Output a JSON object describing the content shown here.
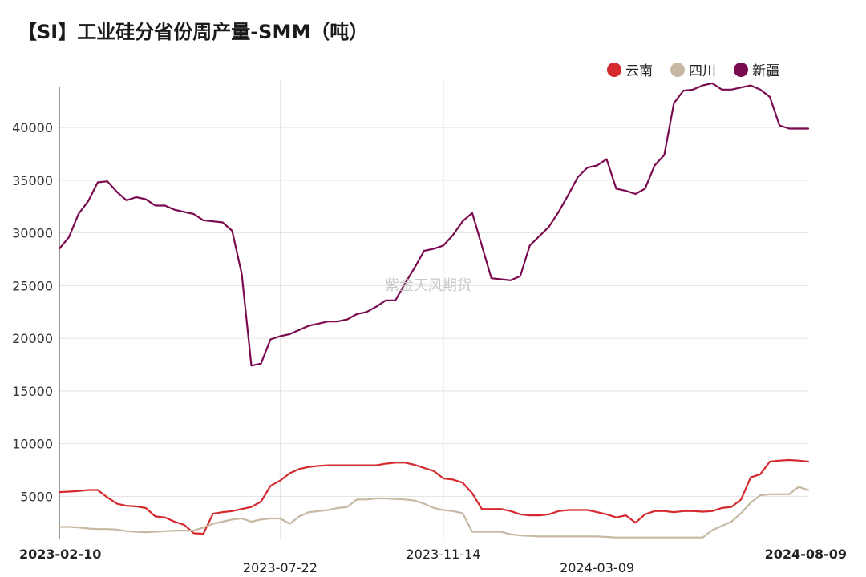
{
  "chart_data": {
    "type": "line",
    "title": "【SI】工业硅分省份周产量-SMM（吨）",
    "watermark": "紫金天风期货",
    "x": [
      "2023-02-10",
      "2023-02-17",
      "2023-02-24",
      "2023-03-03",
      "2023-03-10",
      "2023-03-17",
      "2023-03-24",
      "2023-03-31",
      "2023-04-07",
      "2023-04-14",
      "2023-04-21",
      "2023-04-28",
      "2023-05-05",
      "2023-05-12",
      "2023-05-19",
      "2023-05-26",
      "2023-06-02",
      "2023-06-09",
      "2023-06-16",
      "2023-06-23",
      "2023-06-30",
      "2023-07-07",
      "2023-07-14",
      "2023-07-21",
      "2023-07-28",
      "2023-08-04",
      "2023-08-11",
      "2023-08-18",
      "2023-08-25",
      "2023-09-01",
      "2023-09-08",
      "2023-09-15",
      "2023-09-22",
      "2023-09-29",
      "2023-10-06",
      "2023-10-13",
      "2023-10-20",
      "2023-10-27",
      "2023-11-03",
      "2023-11-10",
      "2023-11-17",
      "2023-11-24",
      "2023-12-01",
      "2023-12-08",
      "2023-12-15",
      "2023-12-22",
      "2023-12-29",
      "2024-01-05",
      "2024-01-12",
      "2024-01-19",
      "2024-01-26",
      "2024-02-02",
      "2024-02-09",
      "2024-02-16",
      "2024-02-23",
      "2024-03-01",
      "2024-03-08",
      "2024-03-15",
      "2024-03-22",
      "2024-03-29",
      "2024-04-05",
      "2024-04-12",
      "2024-04-19",
      "2024-04-26",
      "2024-05-03",
      "2024-05-10",
      "2024-05-17",
      "2024-05-24",
      "2024-05-31",
      "2024-06-07",
      "2024-06-14",
      "2024-06-21",
      "2024-06-28",
      "2024-07-05",
      "2024-07-12",
      "2024-07-19",
      "2024-07-26",
      "2024-08-02",
      "2024-08-09"
    ],
    "xticks": [
      "2023-02-10",
      "2023-07-22",
      "2023-11-14",
      "2024-03-09",
      "2024-08-09"
    ],
    "yticks": [
      5000,
      10000,
      15000,
      20000,
      25000,
      30000,
      35000,
      40000
    ],
    "ylim": [
      1000,
      44500
    ],
    "grid": true,
    "legend_position": "top-right",
    "series": [
      {
        "name": "云南",
        "color": "#d42a2f",
        "values": [
          5400,
          5450,
          5500,
          5600,
          5600,
          4900,
          4300,
          4100,
          4050,
          3900,
          3100,
          3000,
          2600,
          2300,
          1500,
          1450,
          3350,
          3500,
          3600,
          3800,
          4000,
          4500,
          6000,
          6500,
          7200,
          7600,
          7800,
          7900,
          7950,
          7950,
          7950,
          7950,
          7950,
          7950,
          8100,
          8200,
          8200,
          8000,
          7700,
          7400,
          6700,
          6600,
          6300,
          5300,
          3800,
          3800,
          3800,
          3600,
          3300,
          3200,
          3200,
          3300,
          3600,
          3700,
          3700,
          3700,
          3500,
          3300,
          3000,
          3200,
          2500,
          3300,
          3600,
          3600,
          3500,
          3600,
          3600,
          3550,
          3600,
          3900,
          4000,
          4700,
          6800,
          7100,
          8300,
          8400,
          8450,
          8400,
          8300
        ]
      },
      {
        "name": "四川",
        "color": "#c6b8a3",
        "values": [
          2100,
          2100,
          2050,
          1950,
          1900,
          1900,
          1850,
          1700,
          1650,
          1600,
          1650,
          1700,
          1750,
          1750,
          1750,
          2050,
          2400,
          2600,
          2800,
          2900,
          2600,
          2800,
          2900,
          2900,
          2400,
          3100,
          3500,
          3600,
          3700,
          3900,
          4000,
          4700,
          4700,
          4800,
          4800,
          4750,
          4700,
          4600,
          4300,
          3900,
          3700,
          3600,
          3400,
          1650,
          1650,
          1650,
          1650,
          1400,
          1300,
          1250,
          1200,
          1200,
          1200,
          1200,
          1200,
          1200,
          1200,
          1150,
          1100,
          1100,
          1100,
          1100,
          1100,
          1100,
          1100,
          1100,
          1100,
          1100,
          1800,
          2200,
          2600,
          3400,
          4400,
          5100,
          5200,
          5200,
          5200,
          5900,
          5600
        ]
      },
      {
        "name": "新疆",
        "color": "#7a0b4f",
        "values": [
          28500,
          29600,
          31800,
          33000,
          34800,
          34900,
          33900,
          33100,
          33400,
          33200,
          32600,
          32600,
          32200,
          32000,
          31800,
          31200,
          31100,
          31000,
          30200,
          26100,
          17400,
          17600,
          19900,
          20200,
          20400,
          20800,
          21200,
          21400,
          21600,
          21600,
          21800,
          22300,
          22500,
          23000,
          23600,
          23600,
          25200,
          26700,
          28300,
          28500,
          28800,
          29800,
          31100,
          31900,
          28800,
          25700,
          25600,
          25500,
          25900,
          28800,
          29700,
          30600,
          32000,
          33600,
          35300,
          36200,
          36400,
          37000,
          34200,
          34000,
          33700,
          34200,
          36400,
          37400,
          42300,
          43500,
          43600,
          44000,
          44200,
          43600,
          43600,
          43800,
          44000,
          43600,
          42900,
          40200,
          39900,
          39900,
          39900
        ]
      }
    ]
  }
}
